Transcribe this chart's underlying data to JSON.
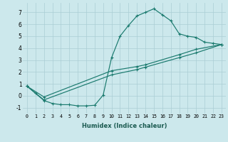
{
  "xlabel": "Humidex (Indice chaleur)",
  "xlim": [
    -0.5,
    23.5
  ],
  "ylim": [
    -1.5,
    7.8
  ],
  "yticks": [
    -1,
    0,
    1,
    2,
    3,
    4,
    5,
    6,
    7
  ],
  "xticks": [
    0,
    1,
    2,
    3,
    4,
    5,
    6,
    7,
    8,
    9,
    10,
    11,
    12,
    13,
    14,
    15,
    16,
    17,
    18,
    19,
    20,
    21,
    22,
    23
  ],
  "line_color": "#1a7a6e",
  "bg_color": "#cce8ec",
  "grid_color": "#aacdd4",
  "line1_x": [
    0,
    1,
    2,
    3,
    4,
    5,
    6,
    7,
    8,
    9,
    10,
    11,
    12,
    13,
    14,
    15,
    16,
    17,
    18,
    19,
    20,
    21,
    22,
    23
  ],
  "line1_y": [
    0.8,
    0.2,
    -0.4,
    -0.65,
    -0.75,
    -0.75,
    -0.85,
    -0.85,
    -0.8,
    0.05,
    3.2,
    5.0,
    5.9,
    6.7,
    7.0,
    7.3,
    6.8,
    6.3,
    5.2,
    5.0,
    4.9,
    4.5,
    4.4,
    4.3
  ],
  "line2_x": [
    0,
    2,
    10,
    13,
    14,
    18,
    20,
    23
  ],
  "line2_y": [
    0.8,
    -0.35,
    1.75,
    2.2,
    2.4,
    3.2,
    3.6,
    4.3
  ],
  "line3_x": [
    0,
    2,
    10,
    13,
    14,
    18,
    20,
    23
  ],
  "line3_y": [
    0.8,
    -0.1,
    2.1,
    2.45,
    2.6,
    3.45,
    3.9,
    4.3
  ],
  "xlabel_fontsize": 6.0,
  "xlabel_color": "#1a5a50",
  "tick_fontsize_x": 4.8,
  "tick_fontsize_y": 5.5,
  "linewidth": 0.85,
  "markersize": 3.0,
  "markeredgewidth": 0.8
}
